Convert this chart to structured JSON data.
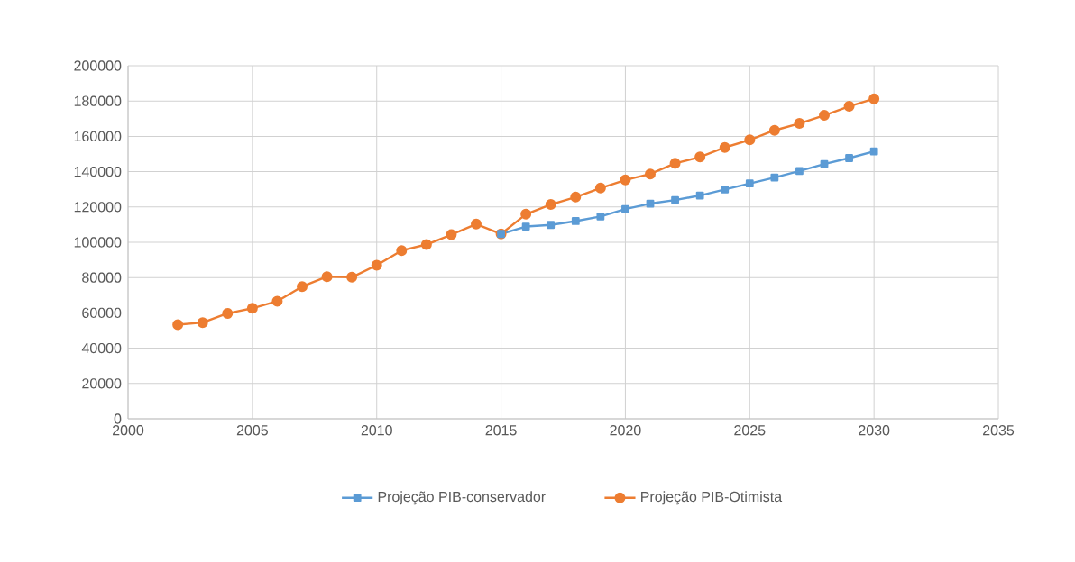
{
  "chart_data": {
    "type": "line",
    "x": [
      2002,
      2003,
      2004,
      2005,
      2006,
      2007,
      2008,
      2009,
      2010,
      2011,
      2012,
      2013,
      2014,
      2015,
      2016,
      2017,
      2018,
      2019,
      2020,
      2021,
      2022,
      2023,
      2024,
      2025,
      2026,
      2027,
      2028,
      2029,
      2030
    ],
    "series": [
      {
        "name": "Projeção PIB-conservador",
        "color": "#5b9bd5",
        "marker": "square",
        "values": [
          null,
          null,
          null,
          null,
          null,
          null,
          null,
          null,
          null,
          null,
          null,
          null,
          null,
          104700,
          108900,
          109800,
          112000,
          114600,
          118800,
          121900,
          123900,
          126500,
          129900,
          133300,
          136700,
          140400,
          144300,
          147700,
          151500
        ]
      },
      {
        "name": "Projeção PIB-Otimista",
        "color": "#ed7d31",
        "marker": "circle",
        "values": [
          53300,
          54500,
          59700,
          62600,
          66600,
          74900,
          80500,
          80200,
          87000,
          95300,
          98700,
          104300,
          110300,
          104700,
          115900,
          121400,
          125600,
          130700,
          135300,
          138700,
          144700,
          148300,
          153700,
          158000,
          163400,
          167300,
          171900,
          177000,
          181300
        ]
      }
    ],
    "xlim": [
      2000,
      2035
    ],
    "xticks": [
      2000,
      2005,
      2010,
      2015,
      2020,
      2025,
      2030,
      2035
    ],
    "ylim": [
      0,
      200000
    ],
    "yticks": [
      0,
      20000,
      40000,
      60000,
      80000,
      100000,
      120000,
      140000,
      160000,
      180000,
      200000
    ],
    "grid": true,
    "legend": "bottom"
  }
}
